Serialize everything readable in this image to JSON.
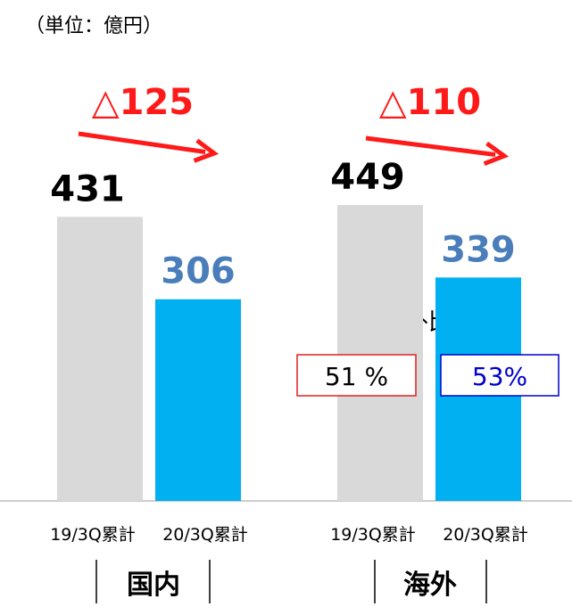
{
  "chart_data": {
    "type": "bar",
    "unit": "（単位：億円）",
    "categories": [
      "19/3Q累計",
      "20/3Q累計",
      "19/3Q累計",
      "20/3Q累計"
    ],
    "values": [
      431,
      306,
      449,
      339
    ],
    "colors": [
      "#d9d9d9",
      "#00b0f0",
      "#d9d9d9",
      "#00b0f0"
    ],
    "label_colors": [
      "#000000",
      "#4a7ebb",
      "#000000",
      "#4a7ebb"
    ],
    "groups": [
      "国内",
      "海外"
    ],
    "changes": [
      "△125",
      "△110"
    ],
    "ratio_title": "海外比率",
    "ratios": [
      {
        "label": "51 %",
        "color": "#e02020"
      },
      {
        "label": "53%",
        "color": "#0000cc"
      }
    ]
  }
}
